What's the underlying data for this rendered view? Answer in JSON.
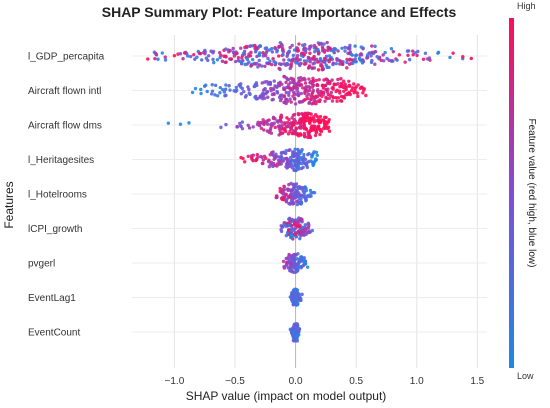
{
  "chart_data": {
    "type": "scatter",
    "subtype": "shap-beeswarm",
    "title": "SHAP Summary Plot: Feature Importance and Effects",
    "xlabel": "SHAP value (impact on model output)",
    "ylabel": "Features",
    "xlim": [
      -1.35,
      1.58
    ],
    "xticks": [
      -1.0,
      -0.5,
      0.0,
      0.5,
      1.0,
      1.5
    ],
    "xtick_labels": [
      "−1.0",
      "−0.5",
      "0.0",
      "0.5",
      "1.0",
      "1.5"
    ],
    "grid": true,
    "colorbar": {
      "label": "Feature value (red high, blue low)",
      "high_label": "High",
      "low_label": "Low",
      "low_color": "#1e88e5",
      "mid_color": "#7e4fd6",
      "high_color": "#ff0d57"
    },
    "features": [
      {
        "name": "l_GDP_percapita",
        "min": -1.25,
        "max": 1.45,
        "center": 0.05,
        "spread": 0.5,
        "height": 0.42,
        "n": 420,
        "color_mode": "mixed",
        "tails": [
          [
            -1.22,
            "high"
          ],
          [
            -1.1,
            "low"
          ],
          [
            -1.0,
            "high"
          ],
          [
            1.3,
            "high"
          ],
          [
            1.38,
            "high"
          ],
          [
            1.45,
            "high"
          ],
          [
            1.18,
            "low"
          ]
        ]
      },
      {
        "name": "Aircraft flown intl",
        "min": -0.85,
        "max": 0.58,
        "center": 0.05,
        "spread": 0.35,
        "height": 0.42,
        "n": 330,
        "color_mode": "pos-high",
        "tails": [
          [
            -0.85,
            "low"
          ],
          [
            -0.78,
            "low"
          ],
          [
            0.58,
            "high"
          ],
          [
            0.5,
            "high"
          ]
        ]
      },
      {
        "name": "Aircraft flow dms",
        "min": -1.05,
        "max": 0.28,
        "center": 0.08,
        "spread": 0.25,
        "height": 0.36,
        "n": 240,
        "color_mode": "pos-high",
        "tails": [
          [
            -1.05,
            "low"
          ],
          [
            -0.95,
            "low"
          ],
          [
            -0.88,
            "low"
          ],
          [
            0.28,
            "high"
          ]
        ]
      },
      {
        "name": "l_Heritagesites",
        "min": -0.45,
        "max": 0.18,
        "center": 0.0,
        "spread": 0.18,
        "height": 0.34,
        "n": 170,
        "color_mode": "neg-high",
        "tails": [
          [
            -0.45,
            "high"
          ],
          [
            -0.42,
            "high"
          ]
        ]
      },
      {
        "name": "l_Hotelrooms",
        "min": -0.2,
        "max": 0.16,
        "center": 0.0,
        "spread": 0.08,
        "height": 0.32,
        "n": 130,
        "color_mode": "neg-high",
        "tails": []
      },
      {
        "name": "lCPI_growth",
        "min": -0.15,
        "max": 0.14,
        "center": 0.0,
        "spread": 0.06,
        "height": 0.32,
        "n": 120,
        "color_mode": "mixed",
        "tails": []
      },
      {
        "name": "pvgerl",
        "min": -0.2,
        "max": 0.1,
        "center": 0.0,
        "spread": 0.05,
        "height": 0.28,
        "n": 100,
        "color_mode": "neg-high",
        "tails": []
      },
      {
        "name": "EventLag1",
        "min": -0.08,
        "max": 0.08,
        "center": 0.0,
        "spread": 0.02,
        "height": 0.24,
        "n": 80,
        "color_mode": "low",
        "tails": []
      },
      {
        "name": "EventCount",
        "min": -0.1,
        "max": 0.08,
        "center": 0.0,
        "spread": 0.02,
        "height": 0.26,
        "n": 80,
        "color_mode": "low",
        "tails": []
      }
    ]
  }
}
